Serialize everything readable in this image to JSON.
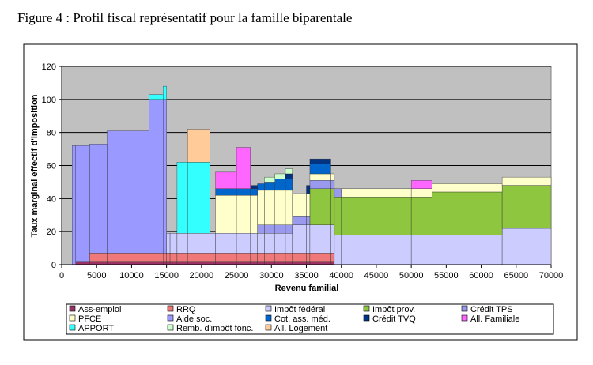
{
  "chart_data": {
    "type": "stacked-step-area",
    "title": "Figure 4 : Profil fiscal représentatif pour la famille biparentale",
    "x_label": "Revenu familial",
    "y_label": "Taux marginal effectif d'imposition",
    "x": [
      0,
      1500,
      2000,
      4000,
      6500,
      12500,
      14500,
      15000,
      15500,
      16500,
      18000,
      21200,
      22000,
      25000,
      27000,
      28000,
      29000,
      30500,
      32000,
      33000,
      35000,
      35500,
      38500,
      39000,
      40000,
      50000,
      53000,
      63000,
      70000
    ],
    "xlim": [
      0,
      70000
    ],
    "xticks": [
      0,
      5000,
      10000,
      15000,
      20000,
      25000,
      30000,
      35000,
      40000,
      45000,
      50000,
      55000,
      60000,
      65000,
      70000
    ],
    "ylim": [
      0,
      120
    ],
    "yticks": [
      0,
      20,
      40,
      60,
      80,
      100,
      120
    ],
    "grid": true,
    "series": [
      {
        "name": "Ass-emploi",
        "color": "#993366",
        "values": [
          0,
          0,
          2,
          2,
          2,
          2,
          2,
          2,
          2,
          2,
          2,
          2,
          2,
          2,
          2,
          2,
          2,
          2,
          2,
          2,
          2,
          2,
          2,
          0,
          0,
          0,
          0,
          0,
          0
        ]
      },
      {
        "name": "RRQ",
        "color": "#f07878",
        "values": [
          0,
          0,
          0,
          5,
          5,
          5,
          5,
          5,
          5,
          5,
          5,
          5,
          5,
          5,
          5,
          5,
          5,
          5,
          5,
          5,
          5,
          5,
          5,
          0,
          0,
          0,
          0,
          0,
          0
        ]
      },
      {
        "name": "Impôt fédéral",
        "color": "#ccccff",
        "values": [
          0,
          0,
          0,
          0,
          0,
          0,
          0,
          12,
          12,
          12,
          12,
          12,
          12,
          12,
          12,
          12,
          12,
          12,
          12,
          17,
          17,
          17,
          17,
          18,
          18,
          18,
          18,
          22,
          22
        ]
      },
      {
        "name": "Impôt prov.",
        "color": "#8ec63f",
        "values": [
          0,
          0,
          0,
          0,
          0,
          0,
          0,
          0,
          0,
          0,
          0,
          0,
          0,
          0,
          0,
          0,
          0,
          0,
          0,
          0,
          0,
          22,
          22,
          23,
          23,
          23,
          26,
          26,
          26
        ]
      },
      {
        "name": "Crédit TPS",
        "color": "#9999ee",
        "values": [
          0,
          0,
          0,
          0,
          0,
          0,
          0,
          0,
          0,
          0,
          0,
          0,
          0,
          0,
          0,
          5,
          5,
          5,
          5,
          5,
          5,
          5,
          5,
          5,
          0,
          0,
          0,
          0,
          0
        ]
      },
      {
        "name": "PFCE",
        "color": "#ffffcc",
        "values": [
          0,
          0,
          0,
          0,
          0,
          0,
          0,
          0,
          0,
          0,
          0,
          0,
          23,
          23,
          23,
          21,
          21,
          21,
          21,
          14,
          14,
          4,
          4,
          0,
          5,
          5,
          5,
          5,
          5
        ]
      },
      {
        "name": "Aide soc.",
        "color": "#9999ff",
        "values": [
          0,
          72,
          70,
          66,
          74,
          93,
          93,
          0,
          0,
          0,
          0,
          0,
          0,
          0,
          0,
          0,
          0,
          0,
          0,
          0,
          0,
          0,
          0,
          0,
          0,
          0,
          0,
          0,
          0
        ]
      },
      {
        "name": "Cot. ass. méd.",
        "color": "#0066cc",
        "values": [
          0,
          0,
          0,
          0,
          0,
          0,
          0,
          0,
          0,
          0,
          0,
          0,
          4,
          4,
          4,
          4,
          5,
          7,
          7,
          0,
          0,
          6,
          0,
          0,
          0,
          0,
          0,
          0,
          0
        ]
      },
      {
        "name": "Crédit TVQ",
        "color": "#003380",
        "values": [
          0,
          0,
          0,
          0,
          0,
          0,
          0,
          0,
          0,
          0,
          0,
          0,
          0,
          0,
          2,
          0,
          0,
          0,
          3,
          0,
          5,
          3,
          0,
          0,
          0,
          0,
          0,
          0,
          0
        ]
      },
      {
        "name": "All. Familiale",
        "color": "#ff66ff",
        "values": [
          0,
          0,
          0,
          0,
          0,
          0,
          0,
          0,
          0,
          0,
          0,
          0,
          10,
          25,
          0,
          0,
          0,
          0,
          0,
          0,
          0,
          0,
          0,
          0,
          0,
          5,
          0,
          0,
          0
        ]
      },
      {
        "name": "APPORT",
        "color": "#33ffff",
        "values": [
          0,
          0,
          0,
          0,
          0,
          3,
          8,
          0,
          0,
          43,
          43,
          0,
          0,
          0,
          0,
          0,
          0,
          0,
          0,
          0,
          0,
          0,
          0,
          0,
          0,
          0,
          0,
          0,
          0
        ]
      },
      {
        "name": "Remb. d'impôt fonc.",
        "color": "#ccffcc",
        "values": [
          0,
          0,
          0,
          0,
          0,
          0,
          0,
          0,
          0,
          0,
          0,
          0,
          0,
          0,
          0,
          0,
          3,
          3,
          3,
          0,
          0,
          0,
          0,
          0,
          0,
          0,
          0,
          0,
          0
        ]
      },
      {
        "name": "All. Logement",
        "color": "#ffcc99",
        "values": [
          0,
          0,
          0,
          0,
          0,
          0,
          0,
          0,
          0,
          0,
          20,
          0,
          0,
          0,
          0,
          0,
          0,
          0,
          0,
          0,
          0,
          0,
          0,
          0,
          0,
          0,
          0,
          0,
          0
        ]
      }
    ]
  }
}
